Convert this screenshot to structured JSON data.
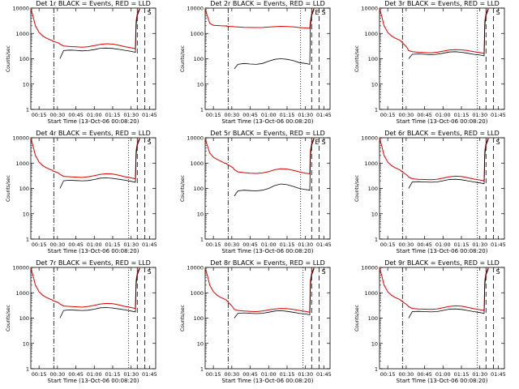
{
  "figure": {
    "title_suffix": "BLACK = Events, RED = LLD"
  },
  "chart_data": {
    "type": "line",
    "common": {
      "xlabel": "Start Time (13-Oct-06 00:08:20)",
      "ylabel": "Counts/sec",
      "yscale": "log",
      "ylim": [
        1,
        10000
      ],
      "xlim_minutes": [
        8.3,
        110
      ],
      "x_ticks": [
        {
          "label": "00:15",
          "min": 15
        },
        {
          "label": "00:30",
          "min": 30
        },
        {
          "label": "00:45",
          "min": 45
        },
        {
          "label": "01:00",
          "min": 60
        },
        {
          "label": "01:15",
          "min": 75
        },
        {
          "label": "01:30",
          "min": 90
        },
        {
          "label": "01:45",
          "min": 105
        }
      ],
      "y_ticks": [
        {
          "label": "1",
          "v": 1
        },
        {
          "label": "10",
          "v": 10
        },
        {
          "label": "100",
          "v": 100
        },
        {
          "label": "1000",
          "v": 1000
        },
        {
          "label": "10000",
          "v": 10000
        }
      ],
      "series_names": [
        "Events",
        "LLD"
      ],
      "series_colors": {
        "Events": "#000000",
        "LLD": "#e00000"
      },
      "markers": {
        "S": "S",
        "E": "E"
      }
    },
    "panels": [
      {
        "title": "Det 1r",
        "x": [
          8.3,
          10,
          12,
          15,
          18,
          21,
          24,
          25.9,
          26,
          30,
          31,
          31.5,
          32,
          35,
          40,
          45,
          50,
          55,
          60,
          65,
          70,
          75,
          80,
          85,
          90,
          93.5,
          94,
          95,
          97
        ],
        "events": [
          null,
          null,
          null,
          null,
          null,
          null,
          null,
          null,
          null,
          null,
          null,
          null,
          100,
          210,
          220,
          215,
          205,
          210,
          230,
          260,
          265,
          255,
          235,
          215,
          195,
          180,
          2000,
          5000,
          9000
        ],
        "lld": [
          9000,
          5000,
          2000,
          1100,
          800,
          650,
          560,
          520,
          500,
          430,
          420,
          400,
          380,
          320,
          305,
          295,
          285,
          300,
          330,
          370,
          390,
          380,
          340,
          300,
          270,
          250,
          3000,
          6000,
          10000
        ],
        "vlines": [
          {
            "min": 27,
            "style": "dashdot"
          },
          {
            "min": 95,
            "style": "dash"
          },
          {
            "min": 101,
            "style": "dash"
          }
        ],
        "markers": [
          "S"
        ]
      },
      {
        "title": "Det 2r",
        "x": [
          8.3,
          10,
          12,
          15,
          18,
          21,
          24,
          25.9,
          26,
          30,
          31,
          31.5,
          32,
          35,
          40,
          45,
          50,
          55,
          60,
          65,
          70,
          75,
          80,
          85,
          90,
          93.5,
          94,
          95,
          97
        ],
        "events": [
          null,
          null,
          null,
          null,
          null,
          null,
          null,
          null,
          null,
          null,
          null,
          null,
          40,
          60,
          65,
          62,
          60,
          65,
          80,
          95,
          100,
          95,
          85,
          70,
          65,
          60,
          2000,
          5000,
          9000
        ],
        "lld": [
          9000,
          5000,
          2500,
          2100,
          2050,
          2000,
          1980,
          1990,
          1900,
          1880,
          1860,
          1850,
          1840,
          1800,
          1750,
          1720,
          1700,
          1720,
          1780,
          1850,
          1900,
          1880,
          1820,
          1700,
          1650,
          1600,
          3000,
          6000,
          10000
        ],
        "vlines": [
          {
            "min": 27,
            "style": "dashdot"
          },
          {
            "min": 86,
            "style": "dot"
          },
          {
            "min": 95,
            "style": "dash"
          },
          {
            "min": 101,
            "style": "dash"
          }
        ],
        "markers": [
          "S",
          "E"
        ]
      },
      {
        "title": "Det 3r",
        "x": [
          8.3,
          10,
          12,
          15,
          18,
          21,
          24,
          25.9,
          26,
          30,
          31,
          31.5,
          32,
          35,
          40,
          45,
          50,
          55,
          60,
          65,
          70,
          75,
          80,
          85,
          90,
          93.5,
          94,
          95,
          97
        ],
        "events": [
          null,
          null,
          null,
          null,
          null,
          null,
          null,
          null,
          null,
          null,
          null,
          null,
          100,
          150,
          155,
          150,
          145,
          150,
          165,
          185,
          190,
          180,
          165,
          150,
          140,
          130,
          2000,
          5000,
          9000
        ],
        "lld": [
          9000,
          5000,
          2000,
          1100,
          800,
          650,
          560,
          500,
          480,
          300,
          260,
          230,
          210,
          190,
          180,
          175,
          170,
          180,
          200,
          220,
          230,
          225,
          210,
          190,
          175,
          160,
          3000,
          6000,
          10000
        ],
        "vlines": [
          {
            "min": 27,
            "style": "dashdot"
          },
          {
            "min": 88,
            "style": "dot"
          },
          {
            "min": 95,
            "style": "dash"
          },
          {
            "min": 101,
            "style": "dash"
          }
        ],
        "markers": [
          "S"
        ]
      },
      {
        "title": "Det 4r",
        "x": [
          8.3,
          10,
          12,
          15,
          18,
          21,
          24,
          25.9,
          26,
          30,
          31,
          31.5,
          32,
          35,
          40,
          45,
          50,
          55,
          60,
          65,
          70,
          75,
          80,
          85,
          90,
          93.5,
          94,
          95,
          97
        ],
        "events": [
          null,
          null,
          null,
          null,
          null,
          null,
          null,
          null,
          null,
          null,
          null,
          null,
          100,
          200,
          210,
          205,
          200,
          205,
          225,
          255,
          260,
          250,
          230,
          210,
          190,
          175,
          2000,
          5000,
          9000
        ],
        "lld": [
          9000,
          5000,
          2000,
          1100,
          800,
          650,
          560,
          520,
          500,
          420,
          400,
          380,
          360,
          300,
          290,
          280,
          270,
          290,
          320,
          360,
          380,
          370,
          330,
          290,
          260,
          240,
          3000,
          6000,
          10000
        ],
        "vlines": [
          {
            "min": 27,
            "style": "dashdot"
          },
          {
            "min": 88,
            "style": "dot"
          },
          {
            "min": 95,
            "style": "dash"
          },
          {
            "min": 101,
            "style": "dash"
          }
        ],
        "markers": [
          "S"
        ]
      },
      {
        "title": "Det 5r",
        "x": [
          8.3,
          10,
          12,
          15,
          18,
          21,
          24,
          25.9,
          26,
          30,
          31,
          31.5,
          32,
          35,
          40,
          45,
          50,
          55,
          60,
          65,
          70,
          75,
          80,
          85,
          90,
          93.5,
          94,
          95,
          97
        ],
        "events": [
          null,
          null,
          null,
          null,
          null,
          null,
          null,
          null,
          null,
          null,
          null,
          null,
          50,
          80,
          85,
          82,
          80,
          85,
          100,
          130,
          150,
          140,
          120,
          100,
          90,
          85,
          2000,
          5000,
          9000
        ],
        "lld": [
          9000,
          5000,
          2500,
          1700,
          1400,
          1200,
          1000,
          950,
          900,
          700,
          650,
          600,
          550,
          450,
          420,
          400,
          390,
          410,
          460,
          550,
          600,
          580,
          520,
          450,
          400,
          380,
          3000,
          6000,
          10000
        ],
        "vlines": [
          {
            "min": 27,
            "style": "dashdot"
          },
          {
            "min": 86,
            "style": "dot"
          },
          {
            "min": 95,
            "style": "dash"
          },
          {
            "min": 101,
            "style": "dash"
          }
        ],
        "markers": [
          "S",
          "E"
        ]
      },
      {
        "title": "Det 6r",
        "x": [
          8.3,
          10,
          12,
          15,
          18,
          21,
          24,
          25.9,
          26,
          30,
          31,
          31.5,
          32,
          35,
          40,
          45,
          50,
          55,
          60,
          65,
          70,
          75,
          80,
          85,
          90,
          93.5,
          94,
          95,
          97
        ],
        "events": [
          null,
          null,
          null,
          null,
          null,
          null,
          null,
          null,
          null,
          null,
          null,
          null,
          100,
          180,
          185,
          180,
          175,
          180,
          200,
          225,
          230,
          220,
          200,
          180,
          165,
          155,
          2000,
          5000,
          9000
        ],
        "lld": [
          9000,
          5000,
          2000,
          1100,
          800,
          650,
          560,
          500,
          480,
          350,
          320,
          300,
          280,
          240,
          230,
          225,
          220,
          230,
          255,
          290,
          305,
          295,
          265,
          235,
          215,
          200,
          3000,
          6000,
          10000
        ],
        "vlines": [
          {
            "min": 27,
            "style": "dashdot"
          },
          {
            "min": 88,
            "style": "dot"
          },
          {
            "min": 95,
            "style": "dash"
          },
          {
            "min": 101,
            "style": "dash"
          }
        ],
        "markers": [
          "S"
        ]
      },
      {
        "title": "Det 7r",
        "x": [
          8.3,
          10,
          12,
          15,
          18,
          21,
          24,
          25.9,
          26,
          30,
          31,
          31.5,
          32,
          35,
          40,
          45,
          50,
          55,
          60,
          65,
          70,
          75,
          80,
          85,
          90,
          93.5,
          94,
          95,
          97
        ],
        "events": [
          null,
          null,
          null,
          null,
          null,
          null,
          null,
          null,
          null,
          null,
          null,
          null,
          100,
          200,
          210,
          205,
          200,
          205,
          225,
          255,
          260,
          250,
          230,
          210,
          190,
          175,
          2000,
          5000,
          9000
        ],
        "lld": [
          9000,
          5000,
          2000,
          1100,
          800,
          650,
          560,
          520,
          500,
          420,
          400,
          380,
          360,
          300,
          290,
          280,
          270,
          290,
          320,
          360,
          380,
          370,
          330,
          290,
          260,
          240,
          3000,
          6000,
          10000
        ],
        "vlines": [
          {
            "min": 27,
            "style": "dashdot"
          },
          {
            "min": 88,
            "style": "dot"
          },
          {
            "min": 95,
            "style": "dash"
          },
          {
            "min": 101,
            "style": "dash"
          }
        ],
        "markers": [
          "S"
        ]
      },
      {
        "title": "Det 8r",
        "x": [
          8.3,
          10,
          12,
          15,
          18,
          21,
          24,
          25.9,
          26,
          30,
          31,
          31.5,
          32,
          35,
          40,
          45,
          50,
          55,
          60,
          65,
          70,
          75,
          80,
          85,
          90,
          93.5,
          94,
          95,
          97
        ],
        "events": [
          null,
          null,
          null,
          null,
          null,
          null,
          null,
          null,
          null,
          null,
          null,
          null,
          100,
          155,
          160,
          155,
          150,
          155,
          170,
          190,
          195,
          185,
          170,
          155,
          145,
          135,
          2000,
          5000,
          9000
        ],
        "lld": [
          9000,
          5000,
          2000,
          1100,
          800,
          650,
          560,
          500,
          480,
          300,
          260,
          240,
          220,
          200,
          190,
          185,
          180,
          190,
          210,
          230,
          240,
          235,
          220,
          200,
          185,
          170,
          3000,
          6000,
          10000
        ],
        "vlines": [
          {
            "min": 27,
            "style": "dashdot"
          },
          {
            "min": 88,
            "style": "dot"
          },
          {
            "min": 95,
            "style": "dash"
          },
          {
            "min": 101,
            "style": "dash"
          }
        ],
        "markers": [
          "S"
        ]
      },
      {
        "title": "Det 9r",
        "x": [
          8.3,
          10,
          12,
          15,
          18,
          21,
          24,
          25.9,
          26,
          30,
          31,
          31.5,
          32,
          35,
          40,
          45,
          50,
          55,
          60,
          65,
          70,
          75,
          80,
          85,
          90,
          93.5,
          94,
          95,
          97
        ],
        "events": [
          null,
          null,
          null,
          null,
          null,
          null,
          null,
          null,
          null,
          null,
          null,
          null,
          100,
          180,
          185,
          180,
          175,
          180,
          200,
          225,
          230,
          220,
          200,
          180,
          165,
          155,
          2000,
          5000,
          9000
        ],
        "lld": [
          9000,
          5000,
          2000,
          1100,
          800,
          650,
          560,
          500,
          480,
          350,
          320,
          300,
          280,
          240,
          230,
          225,
          220,
          230,
          255,
          290,
          305,
          295,
          265,
          235,
          215,
          200,
          3000,
          6000,
          10000
        ],
        "vlines": [
          {
            "min": 27,
            "style": "dashdot"
          },
          {
            "min": 88,
            "style": "dot"
          },
          {
            "min": 95,
            "style": "dash"
          },
          {
            "min": 101,
            "style": "dash"
          }
        ],
        "markers": [
          "S"
        ]
      }
    ]
  }
}
